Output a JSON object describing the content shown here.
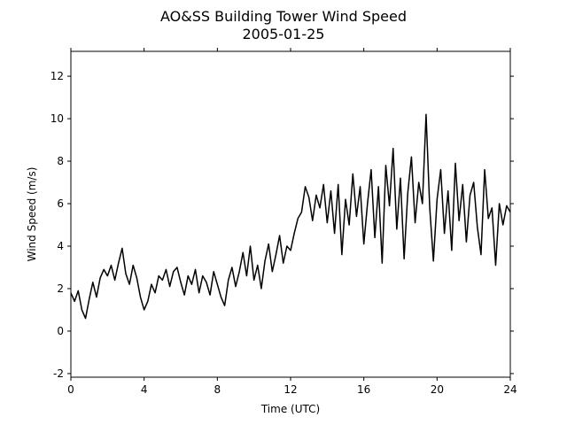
{
  "chart_data": {
    "type": "line",
    "title": "AO&SS Building Tower Wind Speed",
    "subtitle": "2005-01-25",
    "x_label": "Time (UTC)",
    "y_label": "Wind Speed (m/s)",
    "xlim": [
      0,
      24
    ],
    "xticks": [
      0,
      4,
      8,
      12,
      16,
      20,
      24
    ],
    "ylim": [
      -2.17,
      13.17
    ],
    "yticks": [
      -2,
      0,
      2,
      4,
      6,
      8,
      10,
      12
    ],
    "series": [
      {
        "color": "#000000",
        "x": [
          0,
          0.2,
          0.4,
          0.6,
          0.8,
          1,
          1.2,
          1.4,
          1.6,
          1.8,
          2,
          2.2,
          2.4,
          2.6,
          2.8,
          3,
          3.2,
          3.4,
          3.6,
          3.8,
          4,
          4.2,
          4.4,
          4.6,
          4.8,
          5,
          5.2,
          5.4,
          5.6,
          5.8,
          6,
          6.2,
          6.4,
          6.6,
          6.8,
          7,
          7.2,
          7.4,
          7.6,
          7.8,
          8,
          8.2,
          8.4,
          8.6,
          8.8,
          9,
          9.2,
          9.4,
          9.6,
          9.8,
          10,
          10.2,
          10.4,
          10.6,
          10.8,
          11,
          11.2,
          11.4,
          11.6,
          11.8,
          12,
          12.2,
          12.4,
          12.6,
          12.8,
          13,
          13.2,
          13.4,
          13.6,
          13.8,
          14,
          14.2,
          14.4,
          14.6,
          14.8,
          15,
          15.2,
          15.4,
          15.6,
          15.8,
          16,
          16.2,
          16.4,
          16.6,
          16.8,
          17,
          17.2,
          17.4,
          17.6,
          17.8,
          18,
          18.2,
          18.4,
          18.6,
          18.8,
          19,
          19.2,
          19.4,
          19.6,
          19.8,
          20,
          20.2,
          20.4,
          20.6,
          20.8,
          21,
          21.2,
          21.4,
          21.6,
          21.8,
          22,
          22.2,
          22.4,
          22.6,
          22.8,
          23,
          23.2,
          23.4,
          23.6,
          23.8,
          24
        ],
        "values": [
          1.8,
          1.4,
          1.9,
          1.0,
          0.6,
          1.5,
          2.3,
          1.6,
          2.5,
          2.9,
          2.6,
          3.1,
          2.4,
          3.2,
          3.9,
          2.7,
          2.2,
          3.1,
          2.5,
          1.6,
          1.0,
          1.4,
          2.2,
          1.8,
          2.6,
          2.4,
          2.9,
          2.1,
          2.8,
          3.0,
          2.3,
          1.7,
          2.6,
          2.2,
          2.9,
          1.8,
          2.6,
          2.3,
          1.7,
          2.8,
          2.2,
          1.6,
          1.2,
          2.4,
          3.0,
          2.1,
          2.8,
          3.7,
          2.6,
          4.0,
          2.4,
          3.1,
          2.0,
          3.3,
          4.1,
          2.8,
          3.6,
          4.5,
          3.2,
          4.0,
          3.8,
          4.6,
          5.3,
          5.6,
          6.8,
          6.3,
          5.2,
          6.4,
          5.8,
          6.9,
          5.1,
          6.6,
          4.6,
          6.9,
          3.6,
          6.2,
          5.0,
          7.4,
          5.4,
          6.8,
          4.1,
          6.0,
          7.6,
          4.4,
          6.8,
          3.2,
          7.8,
          5.9,
          8.6,
          4.8,
          7.2,
          3.4,
          6.5,
          8.2,
          5.1,
          7.0,
          6.0,
          10.2,
          5.8,
          3.3,
          6.2,
          7.6,
          4.6,
          6.6,
          3.8,
          7.9,
          5.2,
          6.9,
          4.2,
          6.4,
          7.0,
          4.9,
          3.6,
          7.6,
          5.3,
          5.8,
          3.1,
          6.0,
          5.0,
          5.9,
          5.6
        ]
      }
    ]
  }
}
